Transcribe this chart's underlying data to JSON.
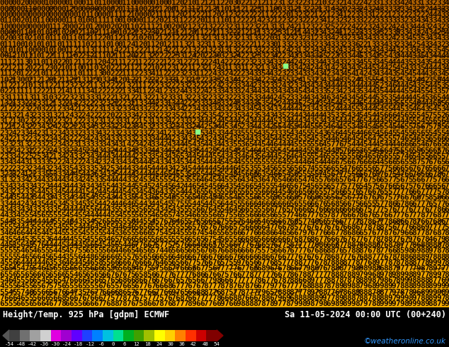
{
  "title_left": "Height/Temp. 925 hPa [gdpm] ECMWF",
  "title_right": "Sa 11-05-2024 00:00 UTC (00+240)",
  "credit": "©weatheronline.co.uk",
  "colorbar_ticks": [
    -54,
    -48,
    -42,
    -36,
    -30,
    -24,
    -18,
    -12,
    -6,
    0,
    6,
    12,
    18,
    24,
    30,
    36,
    42,
    48,
    54
  ],
  "bg_color": "#000000",
  "main_bg_top": "#c87800",
  "main_bg_mid": "#f0a000",
  "main_bg_bot": "#f0a000",
  "text_color": "#1a0a00",
  "arrow_color": "#2a1000",
  "font_size_numbers": 8.0,
  "font_size_main": 8.5,
  "font_size_credit": 7.5,
  "green_square_color": "#88ff88",
  "num_rows": 52,
  "num_cols": 110,
  "seed": 1234
}
